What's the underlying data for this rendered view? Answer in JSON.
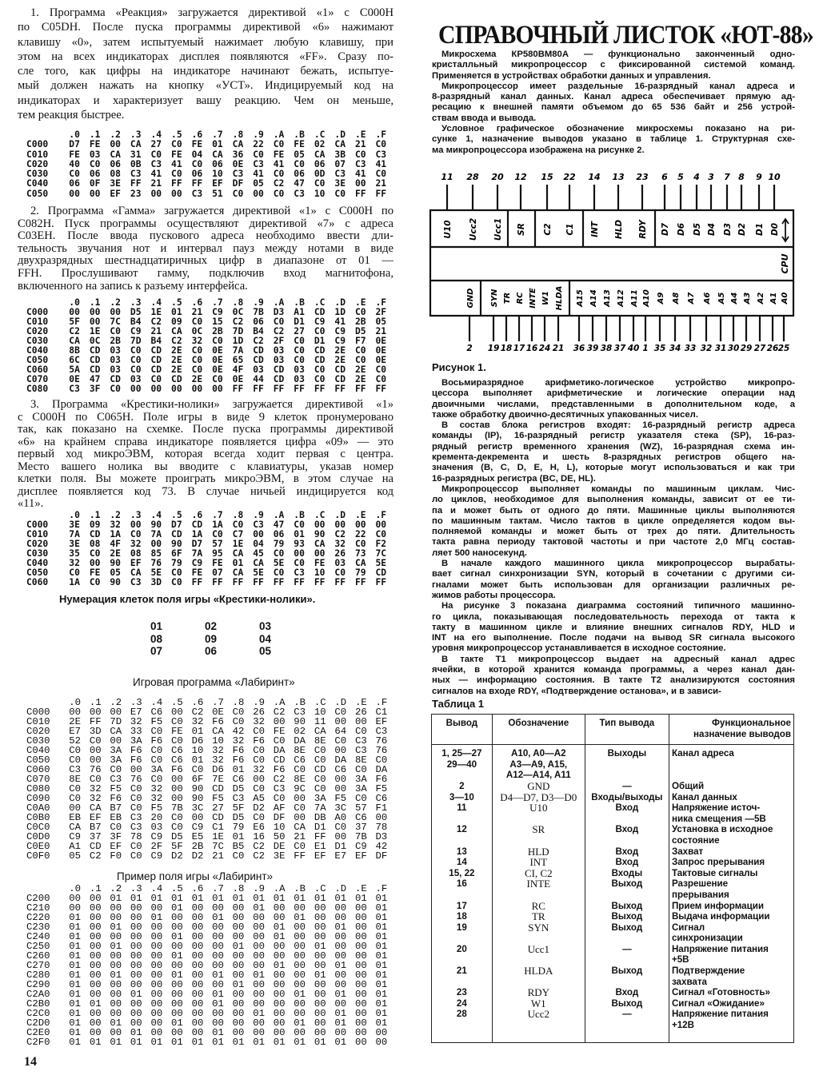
{
  "page_number": "14",
  "left": {
    "p1": [
      "1. Программа «Реакция» загружается директивой «1» с С000Н",
      "по С05DН. После пуска программы директивой «6» нажимают",
      "клавишу «0», затем испытуемый нажимает любую клавишу, при",
      "этом на всех индикаторах дисплея появляются «FF». Сразу по-",
      "сле того, как цифры на индикаторе начинают бежать, испытуе-",
      "мый должен нажать на кнопку «УСТ». Индицируемый код на",
      "индикаторах и характеризует вашу реакцию. Чем он меньше,",
      "тем реакция быстрее."
    ],
    "p2": [
      "2. Программа «Гамма» загружается директивой «1» с С000Н по",
      "С082Н. Пуск программы осуществляют директивой «7» с адреса",
      "С03ЕН. После ввода пускового адреса необходимо ввести дли-",
      "тельность звучания нот и интервал пауз между нотами в виде",
      "двухразрядных шестнадцатиричных цифр в диапазоне от 01 —",
      "FFH. Прослушивают гамму, подключив вход магнитофона,",
      "включенного на запись к разъему интерфейса."
    ],
    "p3": [
      "3. Программа «Крестики-нолики» загружается директивой «1»",
      "с С000Н по С065Н. Поле игры в виде 9 клеток пронумеровано",
      "так, как показано на схемке. После пуска программы директивой",
      "«6» на крайнем справа индикаторе появляется цифра «09» — это",
      "первый ход микроЭВМ, которая всегда ходит первая с центра.",
      "Место вашего нолика вы вводите с клавиатуры, указав номер",
      "клетки поля. Вы можете проиграть микроЭВМ, в этом случае на",
      "дисплее появляется код 73. В случае ничьей индицируется код",
      "«11»."
    ],
    "hex_columns": [
      ".0",
      ".1",
      ".2",
      ".3",
      ".4",
      ".5",
      ".6",
      ".7",
      ".8",
      ".9",
      ".A",
      ".B",
      ".C",
      ".D",
      ".E",
      ".F"
    ],
    "table_reaction": [
      [
        "C000",
        "D7 FE 00 CA 27 C0 FE 01 CA 22 C0 FE 02 CA 21 C0"
      ],
      [
        "C010",
        "FE 03 CA 31 C0 FE 04 CA 36 C0 FE 05 CA 3B C0 C3"
      ],
      [
        "C020",
        "40 C0 06 0B C3 41 C0 06 0E C3 41 C0 06 07 C3 41"
      ],
      [
        "C030",
        "C0 06 08 C3 41 C0 06 10 C3 41 C0 06 0D C3 41 C0"
      ],
      [
        "C040",
        "06 0F 3E FF 21 FF FF EF DF 05 C2 47 C0 3E 00 21"
      ],
      [
        "C050",
        "00 00 EF 23 00 00 C3 51 C0 00 C0 C3 10 C0 FF FF"
      ]
    ],
    "table_gamma": [
      [
        "C000",
        "00 00 00 D5 1E 01 21 C9 0C 7B D3 A1 CD 1D C0 2F"
      ],
      [
        "C010",
        "5F 00 7C B4 C2 09 C0 15 C2 06 C0 D1 C9 41 2B 05"
      ],
      [
        "C020",
        "C2 1E C0 C9 21 CA 0C 2B 7D B4 C2 27 C0 C9 D5 21"
      ],
      [
        "C030",
        "CA 0C 2B 7D B4 C2 32 C0 1D C2 2F C0 D1 C9 F7 0E"
      ],
      [
        "C040",
        "8B CD 03 C0 CD 2E C0 0E 7A CD 03 C0 CD 2E C0 0E"
      ],
      [
        "C050",
        "6C CD 03 C0 CD 2E C0 0E 65 CD 03 C0 CD 2E C0 0E"
      ],
      [
        "C060",
        "5A CD 03 C0 CD 2E C0 0E 4F 03 CD 03 C0 CD 2E C0"
      ],
      [
        "C070",
        "0E 47 CD 03 C0 CD 2E C0 0E 44 CD 03 C0 CD 2E C0"
      ],
      [
        "C080",
        "C3 3F C0 00 00 00 00 00 FF FF FF FF FF FF FF FF"
      ]
    ],
    "table_tictactoe": [
      [
        "C000",
        "3E 09 32 00 90 D7 CD 1A C0 C3 47 C0 00 00 00 00"
      ],
      [
        "C010",
        "7A CD 1A C0 7A CD 1A C0 C7 00 06 01 90 C2 22 C0"
      ],
      [
        "C020",
        "3E 08 4F 32 00 90 D7 57 1E 04 79 93 CA 32 C0 F2"
      ],
      [
        "C030",
        "35 C0 2E 08 85 6F 7A 95 CA 45 C0 00 00 26 73 7C"
      ],
      [
        "C040",
        "32 00 90 EF 76 79 C9 FE 01 CA 5E C0 FE 03 CA 5E"
      ],
      [
        "C050",
        "C0 FE 05 CA 5E C0 FE 07 CA 5E C0 C3 10 C0 79 CD"
      ],
      [
        "C060",
        "1A C0 90 C3 3D C0 FF FF FF FF FF FF FF FF FF FF"
      ]
    ],
    "tictactoe_caption": "Нумерация клеток поля игры «Крестики-нолики».",
    "tictactoe_grid": [
      [
        "01",
        "02",
        "03"
      ],
      [
        "08",
        "09",
        "04"
      ],
      [
        "07",
        "06",
        "05"
      ]
    ],
    "labyrinth_caption": "Игровая программа «Лабиринт»",
    "table_labyrinth": [
      [
        "C000",
        "00 00 00 E7 C6 00 C2 0E C0 26 C2 C3 10 C0 26 C1"
      ],
      [
        "C010",
        "2E FF 7D 32 F5 C0 32 F6 C0 32 00 90 11 00 00 EF"
      ],
      [
        "C020",
        "E7 3D CA 33 C0 FE 01 CA 42 C0 FE 02 CA 64 C0 C3"
      ],
      [
        "C030",
        "52 C0 00 3A F6 C0 D6 10 32 F6 C0 DA 8E C0 C3 76"
      ],
      [
        "C040",
        "C0 00 3A F6 C0 C6 10 32 F6 C0 DA 8E C0 00 C3 76"
      ],
      [
        "C050",
        "C0 00 3A F6 C0 C6 01 32 F6 C0 CD C6 C0 DA 8E C0"
      ],
      [
        "C060",
        "C3 76 C0 00 3A F6 C0 D6 01 32 F6 C0 CD C6 C0 DA"
      ],
      [
        "C070",
        "8E C0 C3 76 C0 00 6F 7E C6 00 C2 8E C0 00 3A F6"
      ],
      [
        "C080",
        "C0 32 F5 C0 32 00 90 CD D5 C0 C3 9C C0 00 3A F5"
      ],
      [
        "C090",
        "C0 32 F6 C0 32 00 90 F5 C3 A5 C0 00 3A F5 C0 C6"
      ],
      [
        "C0A0",
        "00 CA B7 C0 F5 7B 3C 27 5F D2 AF C0 7A 3C 57 F1"
      ],
      [
        "C0B0",
        "EB EF EB C3 20 C0 00 CD D5 C0 DF 00 DB A0 C6 00"
      ],
      [
        "C0C0",
        "CA B7 C0 C3 03 C0 C9 C1 79 E6 10 CA D1 C0 37 78"
      ],
      [
        "C0D0",
        "C9 37 3F 78 C9 D5 E5 1E 01 16 50 21 FF 00 7B D3"
      ],
      [
        "C0E0",
        "A1 CD EF C0 2F 5F 2B 7C B5 C2 DE C0 E1 D1 C9 42"
      ],
      [
        "C0F0",
        "05 C2 F0 C0 C9 D2 D2 21 C0 C2 3E FF EF E7 EF DF"
      ]
    ],
    "field_caption": "Пример поля игры «Лабиринт»",
    "table_field": [
      [
        "C200",
        "00 00 01 01 01 01 01 01 01 01 01 01 01 01 01 01"
      ],
      [
        "C210",
        "00 00 00 00 00 01 00 00 00 01 00 00 00 00 00 01"
      ],
      [
        "C220",
        "01 00 00 00 01 00 00 01 00 00 00 01 00 00 00 01"
      ],
      [
        "C230",
        "01 00 01 00 00 00 00 00 00 00 01 00 00 01 00 01"
      ],
      [
        "C240",
        "01 00 00 00 00 01 00 00 00 00 01 00 00 00 00 01"
      ],
      [
        "C250",
        "01 00 01 00 00 00 00 00 01 00 00 00 01 00 00 01"
      ],
      [
        "C260",
        "01 00 00 00 00 01 00 00 00 00 00 00 00 00 00 01"
      ],
      [
        "C270",
        "01 00 00 00 00 00 00 00 00 00 01 00 00 01 00 01"
      ],
      [
        "C280",
        "01 00 01 00 00 01 00 01 00 01 00 00 01 00 00 01"
      ],
      [
        "C290",
        "01 00 00 00 00 00 00 00 01 00 00 00 00 00 00 01"
      ],
      [
        "C2A0",
        "01 00 00 01 00 00 00 01 00 00 00 01 00 01 00 01"
      ],
      [
        "C2B0",
        "01 01 00 00 00 00 00 01 00 00 00 00 00 00 00 01"
      ],
      [
        "C2C0",
        "01 00 00 00 00 00 00 00 00 01 00 00 00 01 00 01"
      ],
      [
        "C2D0",
        "01 00 01 00 00 01 00 00 00 00 00 01 00 01 00 01"
      ],
      [
        "C2E0",
        "01 00 00 01 00 00 00 01 00 00 00 00 00 00 00 00"
      ],
      [
        "C2F0",
        "01 01 01 01 01 01 01 01 01 01 01 01 01 01 00 00"
      ]
    ]
  },
  "right": {
    "title": "СПРАВОЧНЫЙ ЛИСТОК «ЮТ-88»",
    "intro": [
      [
        "Микросхема КР580ВМ80А — функционально законченный одно-",
        "кристалльный микропроцессор с фиксированной системой команд.",
        "Применяется в устройствах обработки данных и управления."
      ],
      [
        "Микропроцессор имеет раздельные 16-разрядный канал адреса и",
        "8-разрядный канал данных. Канал адреса обеспечивает прямую ад-",
        "ресацию к внешней памяти объемом до 65 536 байт и 256 устрой-",
        "ствам ввода и вывода."
      ],
      [
        "Условное графическое обозначение микросхемы показано на ри-",
        "сунке 1, назначение выводов указано в таблице 1. Структурная схе-",
        "ма микропроцессора изображена на рисунке 2."
      ]
    ],
    "figure": {
      "cpu_label": "CPU",
      "top_pins": [
        {
          "num": "11",
          "label": "U10"
        },
        {
          "num": "28",
          "label": "Ucc2"
        },
        {
          "num": "20",
          "label": "Ucc1"
        },
        {
          "num": "12",
          "label": "SR"
        },
        {
          "num": "15",
          "label": "C2"
        },
        {
          "num": "22",
          "label": "C1"
        },
        {
          "num": "14",
          "label": "INT"
        },
        {
          "num": "13",
          "label": "HLD"
        },
        {
          "num": "23",
          "label": "RDY"
        },
        {
          "num": "6",
          "label": "D7"
        },
        {
          "num": "5",
          "label": "D6"
        },
        {
          "num": "4",
          "label": "D5"
        },
        {
          "num": "3",
          "label": "D4"
        },
        {
          "num": "7",
          "label": "D3"
        },
        {
          "num": "8",
          "label": "D2"
        },
        {
          "num": "9",
          "label": "D1"
        },
        {
          "num": "10",
          "label": "D0"
        }
      ],
      "bottom_pins": [
        {
          "num": "2",
          "label": "GND"
        },
        {
          "num": "19",
          "label": "SYN"
        },
        {
          "num": "18",
          "label": "TR"
        },
        {
          "num": "17",
          "label": "RC"
        },
        {
          "num": "16",
          "label": "INTE"
        },
        {
          "num": "24",
          "label": "W1"
        },
        {
          "num": "21",
          "label": "HLDA"
        },
        {
          "num": "36",
          "label": "A15"
        },
        {
          "num": "39",
          "label": "A14"
        },
        {
          "num": "38",
          "label": "A13"
        },
        {
          "num": "37",
          "label": "A12"
        },
        {
          "num": "40",
          "label": "A11"
        },
        {
          "num": "1",
          "label": "A10"
        },
        {
          "num": "35",
          "label": "A9"
        },
        {
          "num": "34",
          "label": "A8"
        },
        {
          "num": "33",
          "label": "A7"
        },
        {
          "num": "32",
          "label": "A6"
        },
        {
          "num": "31",
          "label": "A5"
        },
        {
          "num": "30",
          "label": "A4"
        },
        {
          "num": "29",
          "label": "A3"
        },
        {
          "num": "27",
          "label": "A2"
        },
        {
          "num": "26",
          "label": "A1"
        },
        {
          "num": "25",
          "label": "A0"
        }
      ],
      "data_bus_icon": "bidirectional-arrow-icon",
      "caption": "Рисунок 1."
    },
    "body": [
      [
        "Восьмиразрядное арифметико-логическое устройство микропро-",
        "цессора выполняет арифметические и логические операции над",
        "двоичными числами, представленными в дополнительном коде, а",
        "также обработку двоично-десятичных упакованных чисел."
      ],
      [
        "В состав блока регистров входят: 16-разрядный регистр адреса",
        "команды (IP), 16-разрядный регистр указателя стека (SP), 16-раз-",
        "рядный регистр временного хранения (WZ), 16-разрядная схема ин-",
        "кремента-декремента и шесть 8-разрядных регистров общего на-",
        "значения (B, C, D, E, H, L), которые могут использоваться и как три",
        "16-разрядных регистра (BC, DE, HL)."
      ],
      [
        "Микропроцессор выполняет команды по машинным циклам. Чис-",
        "ло циклов, необходимое для выполнения команды, зависит от ее ти-",
        "па и может быть от одного до пяти. Машинные циклы выполняются",
        "по машинным тактам. Число тактов в цикле определяется кодом вы-",
        "полняемой команды и может быть от трех до пяти. Длительность",
        "такта равна периоду тактовой частоты и при частоте 2,0 МГц состав-",
        "ляет 500 наносекунд."
      ],
      [
        "В начале каждого машинного цикла микропроцессор вырабаты-",
        "вает сигнал синхронизации SYN, который в сочетании с другими си-",
        "гналами может быть использован для организации различных ре-",
        "жимов работы процессора."
      ],
      [
        "На рисунке 3 показана диаграмма состояний типичного машинно-",
        "го цикла, показывающая последовательность перехода от такта к",
        "такту в машинном цикле и влияние внешних сигналов RDY, HLD и",
        "INT на его выполнение. После подачи на вывод SR сигнала высокого",
        "уровня микропроцессор устанавливается в исходное состояние."
      ],
      [
        "В такте Т1 микропроцессор выдает на адресный канал адрес",
        "ячейки, в которой хранится команда программы, а через канал дан-",
        "ных — информацию состояния. В такте Т2 анализируются состояния",
        "сигналов на входе RDY, «Подтверждение останова», и в зависи-"
      ]
    ],
    "table_caption": "Таблица 1",
    "table": {
      "headers": [
        "Вывод",
        "Обозначение",
        "Тип вывода",
        "Функциональное назначение выводов"
      ],
      "rows": [
        [
          "1, 25—27\n29—40",
          "A10, A0—A2\nA3—A9, A15,\nA12—A14, A11",
          "Выходы",
          "Канал адреса"
        ],
        [
          "2",
          "GND",
          "—",
          "Общий"
        ],
        [
          "3—10",
          "D4—D7, D3—D0",
          "Входы/выходы",
          "Канал данных"
        ],
        [
          "11",
          "U10",
          "Вход",
          "Напряжение источ-\nника смещения —5В"
        ],
        [
          "12",
          "SR",
          "Вход",
          "Установка в исходное\nсостояние"
        ],
        [
          "13",
          "HLD",
          "Вход",
          "Захват"
        ],
        [
          "14",
          "INT",
          "Вход",
          "Запрос прерывания"
        ],
        [
          "15, 22",
          "CI, C2",
          "Входы",
          "Тактовые сигналы"
        ],
        [
          "16",
          "INTE",
          "Выход",
          "Разрешение\nпрерывания"
        ],
        [
          "17",
          "RC",
          "Выход",
          "Прием информации"
        ],
        [
          "18",
          "TR",
          "Выход",
          "Выдача информации"
        ],
        [
          "19",
          "SYN",
          "Выход",
          "Сигнал\nсинхронизации"
        ],
        [
          "20",
          "Ucc1",
          "—",
          "Напряжение питания\n+5В"
        ],
        [
          "21",
          "HLDA",
          "Выход",
          "Подтверждение\nзахвата"
        ],
        [
          "23",
          "RDY",
          "Вход",
          "Сигнал «Готовность»"
        ],
        [
          "24",
          "W1",
          "Выход",
          "Сигнал «Ожидание»"
        ],
        [
          "28",
          "Ucc2",
          "—",
          "Напряжение питания\n+12В"
        ]
      ]
    }
  }
}
